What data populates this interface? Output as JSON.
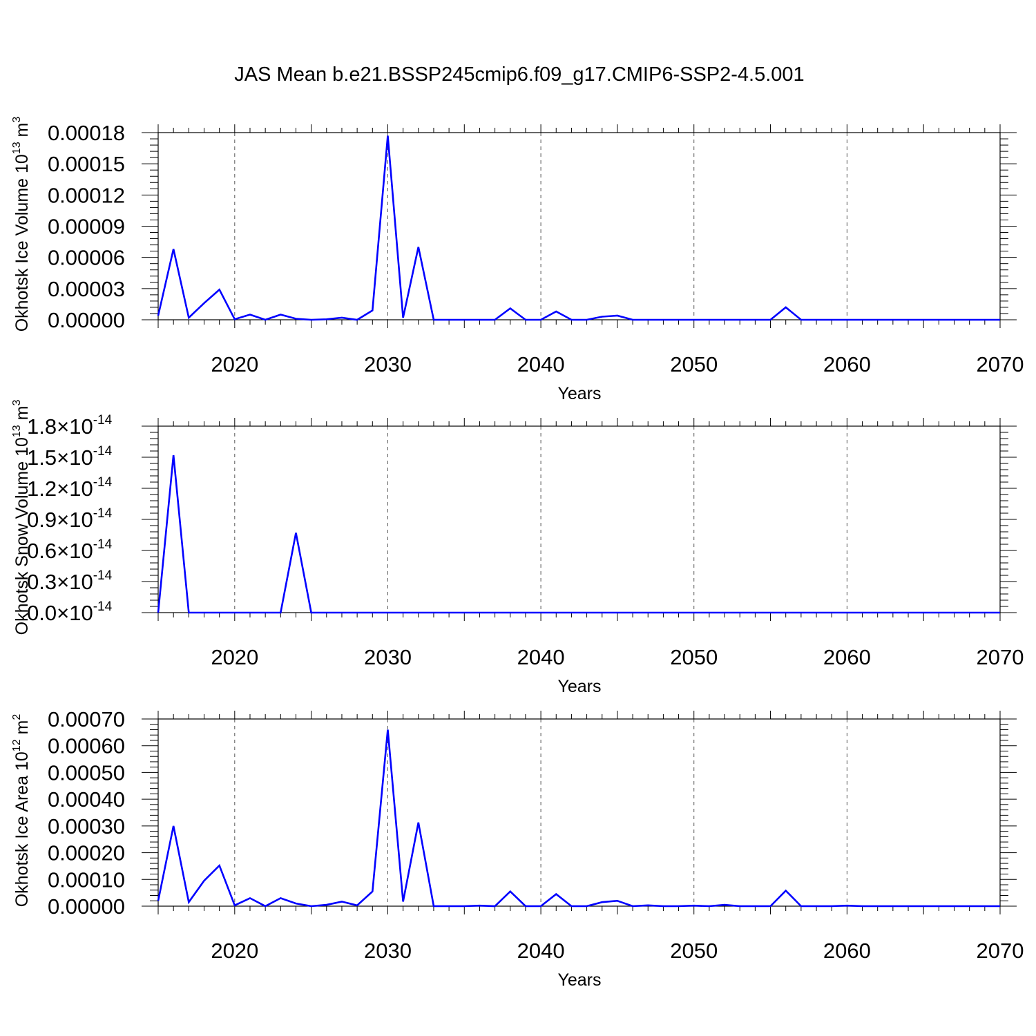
{
  "figure": {
    "title": "JAS Mean b.e21.BSSP245cmip6.f09_g17.CMIP6-SSP2-4.5.001"
  },
  "colors": {
    "line": "#0000ff",
    "axis": "#000000",
    "grid": "#555555"
  },
  "chart_data": [
    {
      "type": "line",
      "xlabel": "Years",
      "ylabel": "Okhotsk Ice Volume 10",
      "ylabel_exp": "13",
      "ylabel_unit": " m",
      "ylabel_unit_exp": "3",
      "xlim": [
        2015,
        2070
      ],
      "ylim": [
        0,
        0.00018
      ],
      "x_ticks": [
        "2020",
        "2030",
        "2040",
        "2050",
        "2060",
        "2070"
      ],
      "y_ticks": [
        "0.00000",
        "0.00003",
        "0.00006",
        "0.00009",
        "0.00012",
        "0.00015",
        "0.00018"
      ],
      "grid": "vertical dashed at x ticks",
      "series": [
        {
          "x": [
            2015,
            2016,
            2017,
            2018,
            2019,
            2020,
            2021,
            2022,
            2023,
            2024,
            2025,
            2026,
            2027,
            2028,
            2029,
            2030,
            2031,
            2032,
            2033,
            2034,
            2035,
            2036,
            2037,
            2038,
            2039,
            2040,
            2041,
            2042,
            2043,
            2044,
            2045,
            2046,
            2047,
            2048,
            2049,
            2050,
            2051,
            2052,
            2053,
            2054,
            2055,
            2056,
            2057,
            2058,
            2059,
            2060,
            2061,
            2062,
            2063,
            2064,
            2065,
            2066,
            2067,
            2068,
            2069,
            2070
          ],
          "values": [
            4e-06,
            6.8e-05,
            2e-06,
            1.6e-05,
            2.9e-05,
            5e-07,
            5e-06,
            0.0,
            5e-06,
            1e-06,
            0.0,
            5e-07,
            2e-06,
            0.0,
            9e-06,
            0.000177,
            2e-06,
            7e-05,
            0.0,
            0.0,
            0.0,
            0.0,
            0.0,
            1.1e-05,
            0.0,
            0.0,
            8e-06,
            0.0,
            0.0,
            3e-06,
            4e-06,
            0.0,
            0.0,
            0.0,
            0.0,
            0.0,
            0.0,
            0.0,
            0.0,
            0.0,
            0.0,
            1.2e-05,
            0.0,
            0.0,
            0.0,
            0.0,
            0.0,
            0.0,
            0.0,
            0.0,
            0.0,
            0.0,
            0.0,
            0.0,
            0.0,
            0.0
          ]
        }
      ]
    },
    {
      "type": "line",
      "xlabel": "Years",
      "ylabel": "Okhotsk Snow Volume 10",
      "ylabel_exp": "13",
      "ylabel_unit": " m",
      "ylabel_unit_exp": "3",
      "xlim": [
        2015,
        2070
      ],
      "ylim": [
        0,
        1.8e-14
      ],
      "x_ticks": [
        "2020",
        "2030",
        "2040",
        "2050",
        "2060",
        "2070"
      ],
      "y_ticks": [
        {
          "mantissa": "0.0",
          "times": "×10",
          "exp": "-14"
        },
        {
          "mantissa": "0.3",
          "times": "×10",
          "exp": "-14"
        },
        {
          "mantissa": "0.6",
          "times": "×10",
          "exp": "-14"
        },
        {
          "mantissa": "0.9",
          "times": "×10",
          "exp": "-14"
        },
        {
          "mantissa": "1.2",
          "times": "×10",
          "exp": "-14"
        },
        {
          "mantissa": "1.5",
          "times": "×10",
          "exp": "-14"
        },
        {
          "mantissa": "1.8",
          "times": "×10",
          "exp": "-14"
        }
      ],
      "grid": "vertical dashed at x ticks",
      "series": [
        {
          "x": [
            2015,
            2016,
            2017,
            2018,
            2019,
            2020,
            2021,
            2022,
            2023,
            2024,
            2025,
            2026,
            2027,
            2028,
            2029,
            2030,
            2031,
            2032,
            2033,
            2034,
            2035,
            2036,
            2037,
            2038,
            2039,
            2040,
            2041,
            2042,
            2043,
            2044,
            2045,
            2046,
            2047,
            2048,
            2049,
            2050,
            2051,
            2052,
            2053,
            2054,
            2055,
            2056,
            2057,
            2058,
            2059,
            2060,
            2061,
            2062,
            2063,
            2064,
            2065,
            2066,
            2067,
            2068,
            2069,
            2070
          ],
          "values": [
            0,
            1.52e-14,
            0,
            0,
            0,
            0,
            0,
            0,
            0,
            7.7e-15,
            0,
            0,
            0,
            0,
            0,
            0,
            0,
            0,
            0,
            0,
            0,
            0,
            0,
            0,
            0,
            0,
            0,
            0,
            0,
            0,
            0,
            0,
            0,
            0,
            0,
            0,
            0,
            0,
            0,
            0,
            0,
            0,
            0,
            0,
            0,
            0,
            0,
            0,
            0,
            0,
            0,
            0,
            0,
            0,
            0,
            0
          ]
        }
      ]
    },
    {
      "type": "line",
      "xlabel": "Years",
      "ylabel": "Okhotsk Ice Area 10",
      "ylabel_exp": "12",
      "ylabel_unit": " m",
      "ylabel_unit_exp": "2",
      "xlim": [
        2015,
        2070
      ],
      "ylim": [
        0,
        0.0007
      ],
      "x_ticks": [
        "2020",
        "2030",
        "2040",
        "2050",
        "2060",
        "2070"
      ],
      "y_ticks": [
        "0.00000",
        "0.00010",
        "0.00020",
        "0.00030",
        "0.00040",
        "0.00050",
        "0.00060",
        "0.00070"
      ],
      "grid": "vertical dashed at x ticks",
      "series": [
        {
          "x": [
            2015,
            2016,
            2017,
            2018,
            2019,
            2020,
            2021,
            2022,
            2023,
            2024,
            2025,
            2026,
            2027,
            2028,
            2029,
            2030,
            2031,
            2032,
            2033,
            2034,
            2035,
            2036,
            2037,
            2038,
            2039,
            2040,
            2041,
            2042,
            2043,
            2044,
            2045,
            2046,
            2047,
            2048,
            2049,
            2050,
            2051,
            2052,
            2053,
            2054,
            2055,
            2056,
            2057,
            2058,
            2059,
            2060,
            2061,
            2062,
            2063,
            2064,
            2065,
            2066,
            2067,
            2068,
            2069,
            2070
          ],
          "values": [
            2e-05,
            0.0003,
            1.5e-05,
            9.5e-05,
            0.000152,
            3e-06,
            3e-05,
            0.0,
            3e-05,
            1e-05,
            0.0,
            5e-06,
            1.7e-05,
            3e-06,
            5.5e-05,
            0.00066,
            1.7e-05,
            0.000313,
            0.0,
            0.0,
            0.0,
            2e-06,
            0.0,
            5.5e-05,
            0.0,
            0.0,
            4.5e-05,
            0.0,
            0.0,
            1.5e-05,
            2e-05,
            0.0,
            3e-06,
            0.0,
            0.0,
            2e-06,
            0.0,
            5e-06,
            0.0,
            0.0,
            0.0,
            5.8e-05,
            0.0,
            0.0,
            0.0,
            2e-06,
            0.0,
            0.0,
            0.0,
            0.0,
            0.0,
            0.0,
            0.0,
            0.0,
            0.0,
            0.0
          ]
        }
      ]
    }
  ]
}
